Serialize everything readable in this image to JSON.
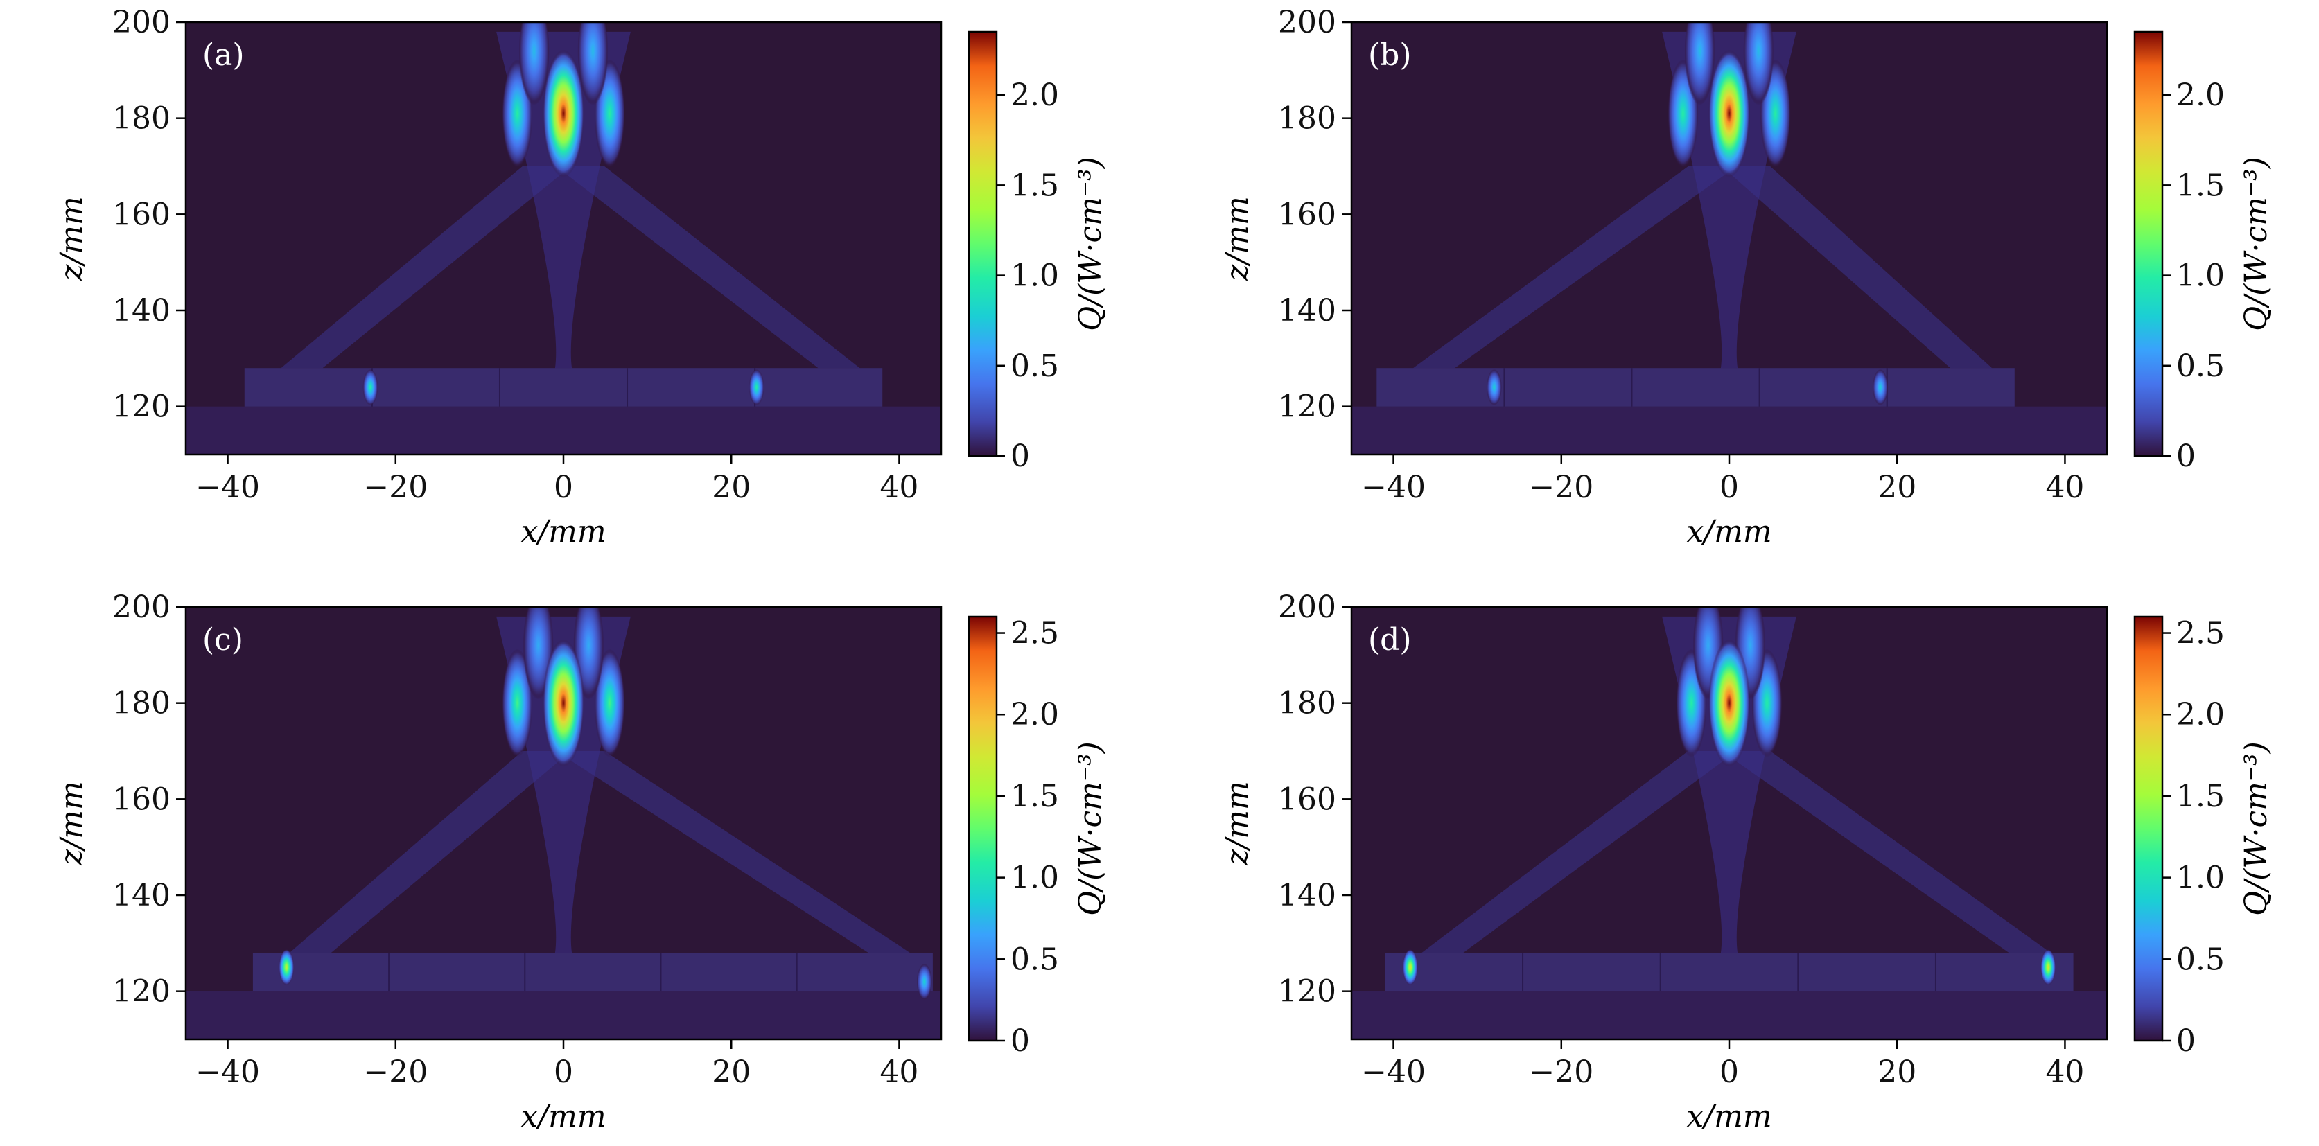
{
  "figure": {
    "colormap": "turbo",
    "background_color": "#2d1637",
    "ticks_label_color": "#111111"
  },
  "chart_data": [
    {
      "type": "heatmap",
      "panel_label": "(a)",
      "xlabel": "x/mm",
      "ylabel": "z/mm",
      "xlim": [
        -45,
        45
      ],
      "ylim": [
        110,
        200
      ],
      "xticks": [
        -40,
        -20,
        0,
        20,
        40
      ],
      "yticks": [
        120,
        140,
        160,
        180,
        200
      ],
      "colorbar": {
        "label": "Q/(W·cm⁻³)",
        "range": [
          0,
          2.35
        ],
        "ticks": [
          0,
          0.5,
          1.0,
          1.5,
          2.0
        ],
        "tick_labels": [
          "0",
          "0.5",
          "1.0",
          "1.5",
          "2.0"
        ]
      },
      "focus": {
        "x": 0,
        "z": 181,
        "peak": 2.35
      },
      "side_lobes": [
        {
          "x": -5.5,
          "z": 181,
          "value": 1.0
        },
        {
          "x": 5.5,
          "z": 181,
          "value": 1.0
        },
        {
          "x": -3.5,
          "z": 194,
          "value": 0.7
        },
        {
          "x": 3.5,
          "z": 194,
          "value": 0.7
        }
      ],
      "array_elements": {
        "z_top": 128,
        "z_bottom": 120,
        "x_extent": [
          -38,
          38
        ]
      },
      "edge_hotspots": [
        {
          "x": -23,
          "z": 124,
          "value": 1.0
        },
        {
          "x": 23,
          "z": 124,
          "value": 1.0
        }
      ]
    },
    {
      "type": "heatmap",
      "panel_label": "(b)",
      "xlabel": "x/mm",
      "ylabel": "z/mm",
      "xlim": [
        -45,
        45
      ],
      "ylim": [
        110,
        200
      ],
      "xticks": [
        -40,
        -20,
        0,
        20,
        40
      ],
      "yticks": [
        120,
        140,
        160,
        180,
        200
      ],
      "colorbar": {
        "label": "Q/(W·cm⁻³)",
        "range": [
          0,
          2.35
        ],
        "ticks": [
          0,
          0.5,
          1.0,
          1.5,
          2.0
        ],
        "tick_labels": [
          "0",
          "0.5",
          "1.0",
          "1.5",
          "2.0"
        ]
      },
      "focus": {
        "x": 0,
        "z": 181,
        "peak": 2.35
      },
      "side_lobes": [
        {
          "x": -5.5,
          "z": 181,
          "value": 1.0
        },
        {
          "x": 5.5,
          "z": 181,
          "value": 1.0
        },
        {
          "x": -3.5,
          "z": 194,
          "value": 0.7
        },
        {
          "x": 3.5,
          "z": 194,
          "value": 0.7
        }
      ],
      "array_elements": {
        "z_top": 128,
        "z_bottom": 120,
        "x_extent": [
          -42,
          34
        ]
      },
      "edge_hotspots": [
        {
          "x": -28,
          "z": 124,
          "value": 0.8
        },
        {
          "x": 18,
          "z": 124,
          "value": 0.8
        }
      ]
    },
    {
      "type": "heatmap",
      "panel_label": "(c)",
      "xlabel": "x/mm",
      "ylabel": "z/mm",
      "xlim": [
        -45,
        45
      ],
      "ylim": [
        110,
        200
      ],
      "xticks": [
        -40,
        -20,
        0,
        20,
        40
      ],
      "yticks": [
        120,
        140,
        160,
        180,
        200
      ],
      "colorbar": {
        "label": "Q/(W·cm⁻³)",
        "range": [
          0,
          2.6
        ],
        "ticks": [
          0,
          0.5,
          1.0,
          1.5,
          2.0,
          2.5
        ],
        "tick_labels": [
          "0",
          "0.5",
          "1.0",
          "1.5",
          "2.0",
          "2.5"
        ]
      },
      "focus": {
        "x": 0,
        "z": 180,
        "peak": 2.6
      },
      "side_lobes": [
        {
          "x": -5.5,
          "z": 180,
          "value": 1.2
        },
        {
          "x": 5.5,
          "z": 180,
          "value": 1.2
        },
        {
          "x": -3,
          "z": 192,
          "value": 0.7
        },
        {
          "x": 3,
          "z": 192,
          "value": 0.7
        }
      ],
      "array_elements": {
        "z_top": 128,
        "z_bottom": 120,
        "x_extent": [
          -37,
          44
        ]
      },
      "edge_hotspots": [
        {
          "x": -33,
          "z": 125,
          "value": 1.7
        },
        {
          "x": 43,
          "z": 122,
          "value": 0.9
        }
      ]
    },
    {
      "type": "heatmap",
      "panel_label": "(d)",
      "xlabel": "x/mm",
      "ylabel": "z/mm",
      "xlim": [
        -45,
        45
      ],
      "ylim": [
        110,
        200
      ],
      "xticks": [
        -40,
        -20,
        0,
        20,
        40
      ],
      "yticks": [
        120,
        140,
        160,
        180,
        200
      ],
      "colorbar": {
        "label": "Q/(W·cm⁻³)",
        "range": [
          0,
          2.6
        ],
        "ticks": [
          0,
          0.5,
          1.0,
          1.5,
          2.0,
          2.5
        ],
        "tick_labels": [
          "0",
          "0.5",
          "1.0",
          "1.5",
          "2.0",
          "2.5"
        ]
      },
      "focus": {
        "x": 0,
        "z": 180,
        "peak": 2.6
      },
      "side_lobes": [
        {
          "x": -4.5,
          "z": 180,
          "value": 1.1
        },
        {
          "x": 4.5,
          "z": 180,
          "value": 1.1
        },
        {
          "x": -2.5,
          "z": 192,
          "value": 0.7
        },
        {
          "x": 2.5,
          "z": 192,
          "value": 0.7
        }
      ],
      "array_elements": {
        "z_top": 128,
        "z_bottom": 120,
        "x_extent": [
          -41,
          41
        ]
      },
      "edge_hotspots": [
        {
          "x": -38,
          "z": 125,
          "value": 1.8
        },
        {
          "x": 38,
          "z": 125,
          "value": 1.8
        }
      ]
    }
  ]
}
